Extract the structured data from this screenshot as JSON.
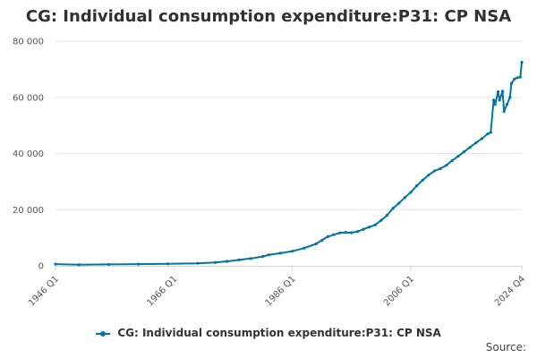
{
  "chart_data": {
    "type": "line",
    "title": "CG: Individual consumption expenditure:P31: CP NSA",
    "xlabel": "",
    "ylabel": "",
    "x_start": "1946 Q1",
    "x_end": "2024 Q4",
    "xticks": [
      "1946 Q1",
      "1966 Q1",
      "1986 Q1",
      "2006 Q1",
      "2024 Q4"
    ],
    "yticks": [
      "0",
      "20 000",
      "40 000",
      "60 000",
      "80 000"
    ],
    "ylim": [
      0,
      80000
    ],
    "grid": true,
    "legend_position": "bottom",
    "series": [
      {
        "name": "CG: Individual consumption expenditure:P31: CP NSA",
        "color": "#0075a3",
        "points": [
          [
            "1946 Q1",
            600
          ],
          [
            "1950 Q1",
            400
          ],
          [
            "1955 Q1",
            500
          ],
          [
            "1960 Q1",
            600
          ],
          [
            "1965 Q1",
            700
          ],
          [
            "1970 Q1",
            900
          ],
          [
            "1973 Q1",
            1200
          ],
          [
            "1975 Q1",
            1600
          ],
          [
            "1977 Q1",
            2100
          ],
          [
            "1979 Q1",
            2600
          ],
          [
            "1981 Q1",
            3300
          ],
          [
            "1982 Q1",
            3900
          ],
          [
            "1984 Q1",
            4500
          ],
          [
            "1986 Q1",
            5200
          ],
          [
            "1988 Q1",
            6300
          ],
          [
            "1990 Q1",
            7800
          ],
          [
            "1991 Q1",
            9100
          ],
          [
            "1992 Q1",
            10400
          ],
          [
            "1993 Q1",
            11100
          ],
          [
            "1994 Q1",
            11700
          ],
          [
            "1995 Q1",
            11900
          ],
          [
            "1996 Q1",
            11800
          ],
          [
            "1997 Q1",
            12200
          ],
          [
            "1998 Q1",
            13000
          ],
          [
            "1999 Q1",
            13800
          ],
          [
            "2000 Q1",
            14600
          ],
          [
            "2001 Q1",
            16200
          ],
          [
            "2002 Q1",
            18000
          ],
          [
            "2003 Q1",
            20500
          ],
          [
            "2004 Q1",
            22300
          ],
          [
            "2005 Q1",
            24300
          ],
          [
            "2006 Q1",
            26200
          ],
          [
            "2007 Q1",
            28500
          ],
          [
            "2008 Q1",
            30500
          ],
          [
            "2009 Q1",
            32300
          ],
          [
            "2010 Q1",
            33800
          ],
          [
            "2011 Q1",
            34600
          ],
          [
            "2012 Q1",
            35800
          ],
          [
            "2013 Q1",
            37500
          ],
          [
            "2014 Q1",
            39000
          ],
          [
            "2015 Q1",
            40600
          ],
          [
            "2016 Q1",
            42200
          ],
          [
            "2017 Q1",
            43800
          ],
          [
            "2018 Q1",
            45300
          ],
          [
            "2019 Q1",
            47000
          ],
          [
            "2019 Q3",
            47500
          ],
          [
            "2020 Q1",
            59000
          ],
          [
            "2020 Q2",
            57500
          ],
          [
            "2020 Q4",
            62000
          ],
          [
            "2021 Q1",
            59000
          ],
          [
            "2021 Q3",
            62200
          ],
          [
            "2021 Q4",
            55000
          ],
          [
            "2022 Q2",
            57500
          ],
          [
            "2022 Q4",
            60000
          ],
          [
            "2023 Q1",
            65000
          ],
          [
            "2023 Q3",
            66500
          ],
          [
            "2024 Q1",
            67000
          ],
          [
            "2024 Q3",
            67200
          ],
          [
            "2024 Q4",
            72500
          ]
        ]
      }
    ]
  },
  "source_label": "Source:"
}
